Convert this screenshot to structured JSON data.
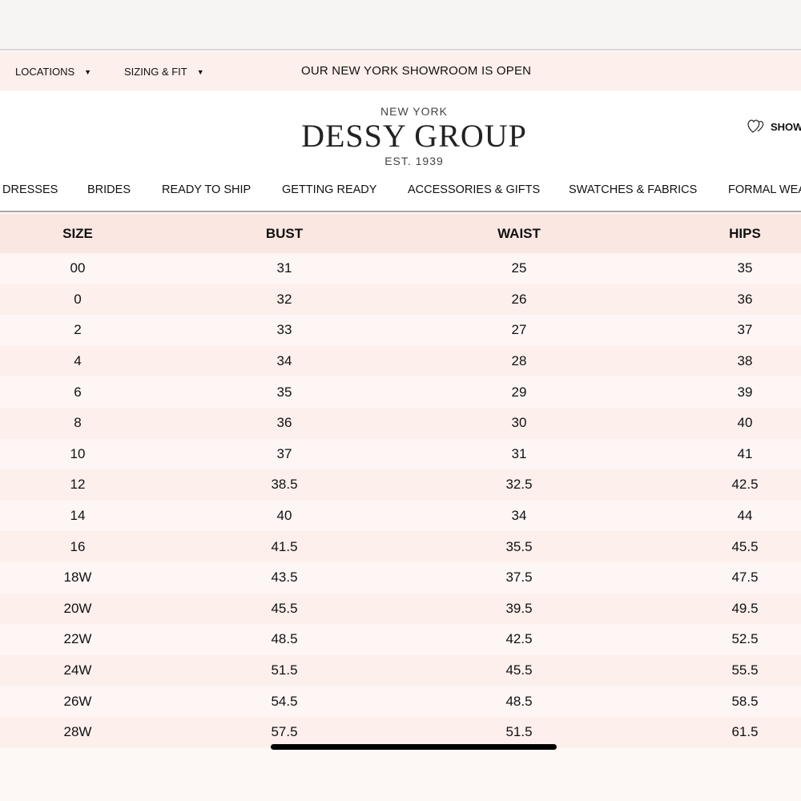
{
  "promo": {
    "locations": "LOCATIONS",
    "sizing": "SIZING & FIT",
    "message": "OUR NEW YORK SHOWROOM IS OPEN"
  },
  "logo": {
    "city": "NEW YORK",
    "name": "DESSY GROUP",
    "est": "EST. 1939"
  },
  "header": {
    "show_label": "SHOW"
  },
  "nav": [
    "DRESSES",
    "BRIDES",
    "READY TO SHIP",
    "GETTING READY",
    "ACCESSORIES & GIFTS",
    "SWATCHES & FABRICS",
    "FORMAL WEA"
  ],
  "table": {
    "headers": [
      "SIZE",
      "BUST",
      "WAIST",
      "HIPS"
    ],
    "rows": [
      [
        "00",
        "31",
        "25",
        "35"
      ],
      [
        "0",
        "32",
        "26",
        "36"
      ],
      [
        "2",
        "33",
        "27",
        "37"
      ],
      [
        "4",
        "34",
        "28",
        "38"
      ],
      [
        "6",
        "35",
        "29",
        "39"
      ],
      [
        "8",
        "36",
        "30",
        "40"
      ],
      [
        "10",
        "37",
        "31",
        "41"
      ],
      [
        "12",
        "38.5",
        "32.5",
        "42.5"
      ],
      [
        "14",
        "40",
        "34",
        "44"
      ],
      [
        "16",
        "41.5",
        "35.5",
        "45.5"
      ],
      [
        "18W",
        "43.5",
        "37.5",
        "47.5"
      ],
      [
        "20W",
        "45.5",
        "39.5",
        "49.5"
      ],
      [
        "22W",
        "48.5",
        "42.5",
        "52.5"
      ],
      [
        "24W",
        "51.5",
        "45.5",
        "55.5"
      ],
      [
        "26W",
        "54.5",
        "48.5",
        "58.5"
      ],
      [
        "28W",
        "57.5",
        "51.5",
        "61.5"
      ]
    ]
  }
}
